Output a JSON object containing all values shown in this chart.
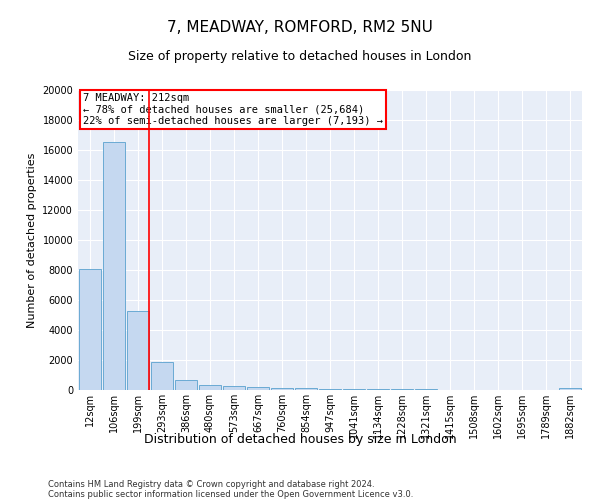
{
  "title": "7, MEADWAY, ROMFORD, RM2 5NU",
  "subtitle": "Size of property relative to detached houses in London",
  "xlabel": "Distribution of detached houses by size in London",
  "ylabel": "Number of detached properties",
  "bar_labels": [
    "12sqm",
    "106sqm",
    "199sqm",
    "293sqm",
    "386sqm",
    "480sqm",
    "573sqm",
    "667sqm",
    "760sqm",
    "854sqm",
    "947sqm",
    "1041sqm",
    "1134sqm",
    "1228sqm",
    "1321sqm",
    "1415sqm",
    "1508sqm",
    "1602sqm",
    "1695sqm",
    "1789sqm",
    "1882sqm"
  ],
  "bar_values": [
    8100,
    16500,
    5300,
    1900,
    700,
    350,
    280,
    190,
    140,
    110,
    80,
    60,
    50,
    40,
    35,
    28,
    22,
    18,
    14,
    10,
    150
  ],
  "bar_color": "#c5d8f0",
  "bar_edgecolor": "#6aaad4",
  "vline_index": 2,
  "vline_color": "red",
  "annotation_text": "7 MEADWAY: 212sqm\n← 78% of detached houses are smaller (25,684)\n22% of semi-detached houses are larger (7,193) →",
  "annotation_box_color": "white",
  "annotation_box_edgecolor": "red",
  "ylim": [
    0,
    20000
  ],
  "yticks": [
    0,
    2000,
    4000,
    6000,
    8000,
    10000,
    12000,
    14000,
    16000,
    18000,
    20000
  ],
  "background_color": "#e8eef8",
  "footer_line1": "Contains HM Land Registry data © Crown copyright and database right 2024.",
  "footer_line2": "Contains public sector information licensed under the Open Government Licence v3.0.",
  "title_fontsize": 11,
  "subtitle_fontsize": 9,
  "xlabel_fontsize": 9,
  "ylabel_fontsize": 8,
  "tick_fontsize": 7,
  "footer_fontsize": 6
}
